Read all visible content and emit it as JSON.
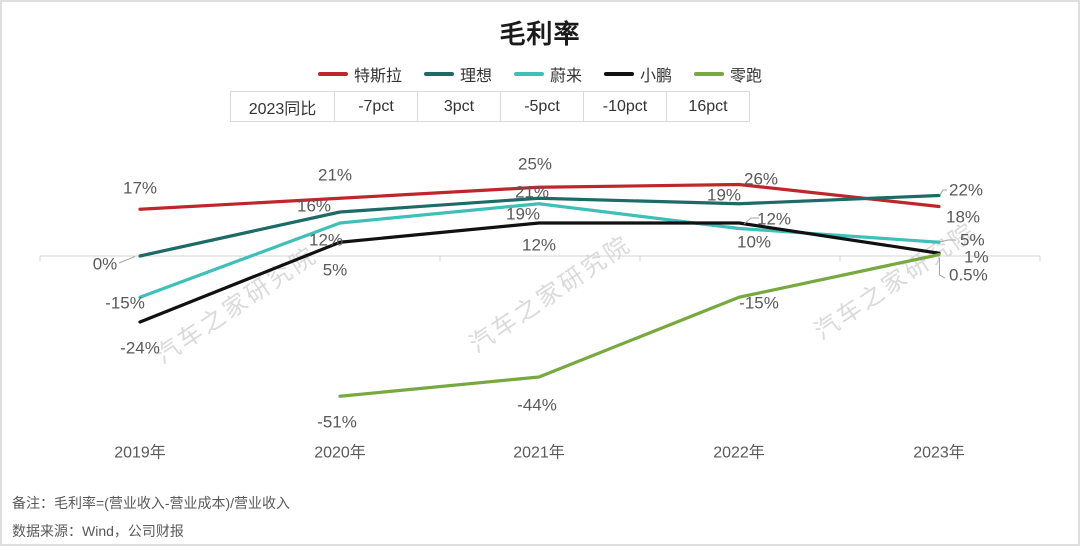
{
  "title": "毛利率",
  "comparison_table": {
    "header": "2023同比",
    "values": [
      "-7pct",
      "3pct",
      "-5pct",
      "-10pct",
      "16pct"
    ]
  },
  "watermark": "汽车之家研究院",
  "notes": [
    "备注：毛利率=(营业收入-营业成本)/营业收入",
    "数据来源：Wind，公司财报"
  ],
  "chart_data": {
    "type": "line",
    "title": "毛利率",
    "categories": [
      "2019年",
      "2020年",
      "2021年",
      "2022年",
      "2023年"
    ],
    "legend_position": "top",
    "y_axis_labels_visible": false,
    "zero_baseline": true,
    "series": [
      {
        "name": "特斯拉",
        "color": "#bf262c",
        "values": [
          17,
          21,
          25,
          26,
          18
        ],
        "labels": [
          "17%",
          "21%",
          "25%",
          "26%",
          "18%"
        ],
        "yoy_2023": "-7pct"
      },
      {
        "name": "理想",
        "color": "#1c6b66",
        "values": [
          0,
          16,
          21,
          19,
          22
        ],
        "labels": [
          "0%",
          "16%",
          "21%",
          "19%",
          "22%"
        ],
        "yoy_2023": "3pct"
      },
      {
        "name": "蔚来",
        "color": "#3ec0b8",
        "values": [
          -15,
          12,
          19,
          10,
          5
        ],
        "labels": [
          "-15%",
          "12%",
          "19%",
          "10%",
          "5%"
        ],
        "yoy_2023": "-5pct"
      },
      {
        "name": "小鹏",
        "color": "#111111",
        "values": [
          -24,
          5,
          12,
          12,
          1
        ],
        "labels": [
          "-24%",
          "5%",
          "12%",
          "12%",
          "1%"
        ],
        "yoy_2023": "-10pct"
      },
      {
        "name": "零跑",
        "color": "#78a93f",
        "values": [
          null,
          -51,
          -44,
          -15,
          0.5
        ],
        "labels": [
          null,
          "-51%",
          "-44%",
          "-15%",
          "0.5%"
        ],
        "yoy_2023": "16pct"
      }
    ]
  }
}
